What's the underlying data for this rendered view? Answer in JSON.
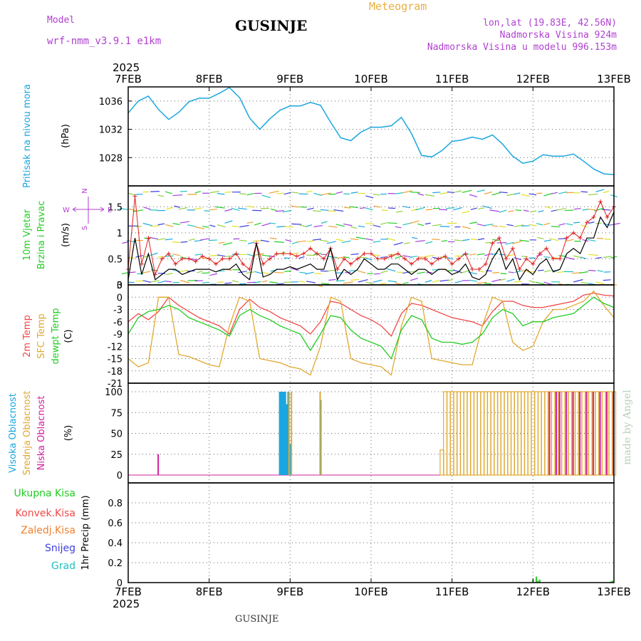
{
  "header": {
    "model_label": "Model",
    "model_version": "wrf-nmm_v3.9.1  e1km",
    "title": "GUSINJE",
    "product": "Meteogram",
    "lonlat": "lon,lat (19.83E, 42.56N)",
    "altitude": "Nadmorska Visina 924m",
    "model_altitude": "Nadmorska Visina u modelu 996.153m",
    "footer_title": "GUSINJE",
    "credit": "made by Angel"
  },
  "time_axis": {
    "year": "2025",
    "dates": [
      "7FEB",
      "8FEB",
      "9FEB",
      "10FEB",
      "11FEB",
      "12FEB",
      "13FEB"
    ],
    "hours_span": 144
  },
  "colors": {
    "pressure": "#1aa6e0",
    "t2m": "#f04848",
    "tsfc": "#e0a830",
    "dewpt": "#22cc22",
    "wind_mean": "#000000",
    "wind_gust": "#e02020",
    "cloud_high": "#1aa6e0",
    "cloud_mid": "#e0a830",
    "cloud_low": "#d0209c",
    "precip_total": "#22cc22",
    "precip_conv": "#f04848",
    "precip_frozen": "#f08030",
    "snow": "#4040e0",
    "hail": "#20c0c0",
    "compass": "#b040d0",
    "credit": "#b8d0b8"
  },
  "chart_data": [
    {
      "type": "line",
      "name": "pressure",
      "ylabel": [
        "Pritisak na nivou mora",
        "(hPa)"
      ],
      "ylim": [
        1024,
        1038
      ],
      "yticks": [
        "1028",
        "1032",
        "1036"
      ],
      "x": [
        0,
        3,
        6,
        9,
        12,
        15,
        18,
        21,
        24,
        27,
        30,
        33,
        36,
        39,
        42,
        45,
        48,
        51,
        54,
        57,
        60,
        63,
        66,
        69,
        72,
        75,
        78,
        81,
        84,
        87,
        90,
        93,
        96,
        99,
        102,
        105,
        108,
        111,
        114,
        117,
        120,
        123,
        126,
        129,
        132,
        135,
        138,
        141,
        144
      ],
      "values": [
        1034.3,
        1036.0,
        1036.7,
        1034.8,
        1033.4,
        1034.4,
        1035.9,
        1036.4,
        1036.4,
        1037.1,
        1037.9,
        1036.5,
        1033.6,
        1032.0,
        1033.5,
        1034.7,
        1035.3,
        1035.3,
        1035.8,
        1035.4,
        1033.0,
        1030.8,
        1030.4,
        1031.6,
        1032.3,
        1032.3,
        1032.5,
        1033.7,
        1031.4,
        1028.3,
        1028.1,
        1029.0,
        1030.3,
        1030.5,
        1030.9,
        1030.6,
        1031.2,
        1029.9,
        1028.2,
        1027.2,
        1027.5,
        1028.4,
        1028.2,
        1028.2,
        1028.5,
        1027.5,
        1026.4,
        1025.7,
        1025.6
      ]
    },
    {
      "type": "line",
      "name": "wind",
      "ylabel": [
        "10m Vjetar",
        "Brzina i Pravac",
        "(m/s)"
      ],
      "ylim": [
        0,
        1.9
      ],
      "yticks": [
        "0",
        "0.5",
        "1",
        "1.5"
      ],
      "compass": {
        "n": "N",
        "s": "S",
        "w": "W",
        "e": "E"
      },
      "x": [
        0,
        2,
        4,
        6,
        8,
        10,
        12,
        14,
        16,
        18,
        20,
        22,
        24,
        26,
        28,
        30,
        32,
        34,
        36,
        38,
        40,
        42,
        44,
        46,
        48,
        50,
        52,
        54,
        56,
        58,
        60,
        62,
        64,
        66,
        68,
        70,
        72,
        74,
        76,
        78,
        80,
        82,
        84,
        86,
        88,
        90,
        92,
        94,
        96,
        98,
        100,
        102,
        104,
        106,
        108,
        110,
        112,
        114,
        116,
        118,
        120,
        122,
        124,
        126,
        128,
        130,
        132,
        134,
        136,
        138,
        140,
        142,
        144
      ],
      "series": [
        {
          "name": "mean",
          "values": [
            0.1,
            0.9,
            0.2,
            0.6,
            0.1,
            0.2,
            0.3,
            0.3,
            0.2,
            0.25,
            0.3,
            0.3,
            0.3,
            0.25,
            0.3,
            0.3,
            0.4,
            0.2,
            0.1,
            0.8,
            0.15,
            0.2,
            0.3,
            0.3,
            0.35,
            0.3,
            0.35,
            0.4,
            0.3,
            0.3,
            0.7,
            0.1,
            0.3,
            0.2,
            0.3,
            0.5,
            0.4,
            0.3,
            0.3,
            0.4,
            0.4,
            0.3,
            0.2,
            0.3,
            0.3,
            0.2,
            0.3,
            0.3,
            0.2,
            0.25,
            0.4,
            0.15,
            0.1,
            0.2,
            0.5,
            0.7,
            0.3,
            0.5,
            0.1,
            0.3,
            0.2,
            0.4,
            0.5,
            0.25,
            0.3,
            0.6,
            0.7,
            0.6,
            0.9,
            0.9,
            1.3,
            1.1,
            1.4
          ]
        },
        {
          "name": "gust",
          "values": [
            0.3,
            1.7,
            0.4,
            0.9,
            0.2,
            0.5,
            0.6,
            0.4,
            0.5,
            0.5,
            0.45,
            0.55,
            0.5,
            0.4,
            0.5,
            0.5,
            0.6,
            0.4,
            0.3,
            0.8,
            0.4,
            0.5,
            0.6,
            0.6,
            0.6,
            0.55,
            0.6,
            0.7,
            0.6,
            0.5,
            0.7,
            0.3,
            0.5,
            0.4,
            0.5,
            0.6,
            0.6,
            0.5,
            0.5,
            0.55,
            0.6,
            0.5,
            0.4,
            0.5,
            0.5,
            0.4,
            0.5,
            0.55,
            0.4,
            0.5,
            0.6,
            0.3,
            0.3,
            0.4,
            0.8,
            0.9,
            0.5,
            0.7,
            0.3,
            0.5,
            0.4,
            0.6,
            0.7,
            0.5,
            0.5,
            0.9,
            1.0,
            0.9,
            1.2,
            1.3,
            1.6,
            1.3,
            1.5
          ]
        }
      ]
    },
    {
      "type": "line",
      "name": "temperature",
      "ylabel": [
        "2m Temp",
        "SFC Temp",
        "dewpt Temp",
        "(C)"
      ],
      "ylim": [
        -21,
        3
      ],
      "yticks": [
        "-21",
        "-18",
        "-15",
        "-12",
        "-9",
        "-6",
        "-3",
        "0",
        "3"
      ],
      "x": [
        0,
        3,
        6,
        9,
        12,
        15,
        18,
        21,
        24,
        27,
        30,
        33,
        36,
        39,
        42,
        45,
        48,
        51,
        54,
        57,
        60,
        63,
        66,
        69,
        72,
        75,
        78,
        81,
        84,
        87,
        90,
        93,
        96,
        99,
        102,
        105,
        108,
        111,
        114,
        117,
        120,
        123,
        126,
        129,
        132,
        135,
        138,
        141,
        144
      ],
      "series": [
        {
          "name": "2m Temp",
          "values": [
            -6,
            -4,
            -5.5,
            -3.5,
            0,
            -2,
            -3.5,
            -5,
            -6,
            -7,
            -9,
            -3,
            -0.5,
            -2.5,
            -3.5,
            -5,
            -6,
            -7,
            -9,
            -6,
            -1,
            -1.5,
            -3,
            -4.5,
            -5.5,
            -7,
            -9.5,
            -4,
            -1.5,
            -2,
            -3,
            -4,
            -5,
            -5.5,
            -6,
            -7,
            -3.5,
            -1,
            -1,
            -2,
            -2.5,
            -2.5,
            -2,
            -1.5,
            -1,
            0.5,
            1,
            0.5,
            0.3
          ]
        },
        {
          "name": "SFC Temp",
          "values": [
            -15,
            -17,
            -16,
            0,
            0,
            -14,
            -14.5,
            -15.5,
            -16.5,
            -17,
            -7,
            0,
            -1,
            -15,
            -15.5,
            -16,
            -17,
            -17.5,
            -19,
            -12,
            0,
            -1,
            -15,
            -16,
            -16.5,
            -17,
            -19,
            -7,
            0,
            -1,
            -15,
            -15.5,
            -16,
            -16.5,
            -16.5,
            -7,
            0,
            -1,
            -11,
            -13,
            -12,
            -6,
            -3,
            -3,
            -2,
            -1,
            1.5,
            -2,
            -5
          ]
        },
        {
          "name": "dewpt Temp",
          "values": [
            -9,
            -5,
            -3.5,
            -3,
            -2,
            -3,
            -5,
            -6,
            -7,
            -8,
            -9.5,
            -4.5,
            -3,
            -4.5,
            -5.5,
            -7,
            -8,
            -9,
            -13,
            -9,
            -4.5,
            -5,
            -8,
            -10,
            -11,
            -12,
            -15,
            -8,
            -4.5,
            -5.5,
            -10,
            -11,
            -11,
            -11.5,
            -11,
            -9,
            -5,
            -3,
            -4,
            -7,
            -6,
            -6,
            -5,
            -4.5,
            -4,
            -2,
            0,
            -1.5,
            -2.5
          ]
        }
      ]
    },
    {
      "type": "bar",
      "name": "cloud",
      "ylabel": [
        "Visoka Oblacnost",
        "Srednja Oblacnost",
        "Niska Oblacnost",
        "(%)"
      ],
      "ylim": [
        0,
        100
      ],
      "yticks": [
        "0",
        "25",
        "50",
        "75",
        "100"
      ],
      "series": [
        {
          "name": "Visoka Oblacnost",
          "x": [
            45,
            45.5,
            46,
            46.5,
            47,
            47.5,
            48,
            57
          ],
          "values": [
            100,
            100,
            100,
            100,
            85,
            100,
            37,
            90
          ]
        },
        {
          "name": "Srednja Oblacnost",
          "x": [
            47.8,
            48.5,
            57,
            93,
            94,
            95,
            96,
            97,
            98,
            99,
            100,
            101,
            102,
            103,
            104,
            105,
            106,
            107,
            108,
            109,
            110,
            111,
            112,
            113,
            114,
            115,
            116,
            117,
            118,
            119,
            120,
            121,
            122,
            123,
            124,
            125,
            126,
            127,
            128,
            129,
            130,
            131,
            132,
            133,
            134,
            135,
            136,
            137,
            138,
            139,
            140,
            141,
            142,
            143,
            144
          ],
          "values": [
            100,
            100,
            100,
            30,
            100,
            100,
            100,
            100,
            100,
            100,
            100,
            100,
            100,
            100,
            100,
            100,
            100,
            100,
            100,
            100,
            100,
            100,
            100,
            100,
            100,
            100,
            100,
            100,
            100,
            100,
            100,
            100,
            100,
            100,
            100,
            100,
            100,
            100,
            100,
            100,
            100,
            100,
            100,
            100,
            100,
            100,
            100,
            100,
            100,
            100,
            100,
            100,
            100,
            100,
            100
          ]
        },
        {
          "name": "Niska Oblacnost",
          "x": [
            9,
            125,
            127,
            128,
            130,
            132,
            134,
            136,
            138,
            140,
            142,
            144
          ],
          "values": [
            25,
            100,
            100,
            100,
            100,
            100,
            100,
            100,
            100,
            100,
            100,
            100
          ]
        }
      ]
    },
    {
      "type": "bar",
      "name": "precip",
      "ylabel": [
        "1hr Precip (mm)"
      ],
      "legend": [
        "Ukupna Kisa",
        "Konvek.Kisa",
        "Zaledj.Kisa",
        "Snijeg",
        "Grad"
      ],
      "ylim": [
        0,
        1
      ],
      "yticks": [
        "0",
        "0.2",
        "0.4",
        "0.6",
        "0.8"
      ],
      "x": [
        120,
        121,
        121.5,
        122,
        143,
        143.5
      ],
      "values": [
        0.03,
        0.06,
        0.02,
        0.03,
        0.01,
        0.02
      ]
    }
  ]
}
